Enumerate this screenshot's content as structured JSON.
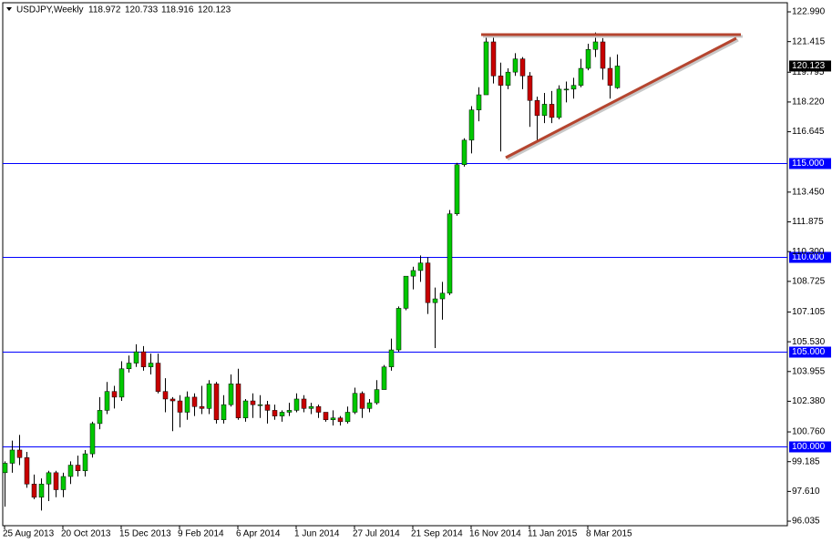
{
  "chart_data": {
    "type": "candlestick",
    "title": "USDJPY,Weekly",
    "categories": [
      "25 Aug 2013",
      null,
      null,
      null,
      null,
      null,
      null,
      null,
      "20 Oct 2013",
      null,
      null,
      null,
      null,
      null,
      null,
      null,
      "15 Dec 2013",
      null,
      null,
      null,
      null,
      null,
      null,
      null,
      "9 Feb 2014",
      null,
      null,
      null,
      null,
      null,
      null,
      null,
      "6 Apr 2014",
      null,
      null,
      null,
      null,
      null,
      null,
      null,
      "1 Jun 2014",
      null,
      null,
      null,
      null,
      null,
      null,
      null,
      "27 Jul 2014",
      null,
      null,
      null,
      null,
      null,
      null,
      null,
      "21 Sep 2014",
      null,
      null,
      null,
      null,
      null,
      null,
      null,
      "16 Nov 2014",
      null,
      null,
      null,
      null,
      null,
      null,
      null,
      "11 Jan 2015",
      null,
      null,
      null,
      null,
      null,
      null,
      null,
      "8 Mar 2015",
      null,
      null,
      null,
      null
    ],
    "open": [
      98.6,
      99.1,
      99.8,
      99.4,
      98.0,
      97.3,
      98.0,
      98.6,
      97.7,
      98.4,
      99.0,
      98.7,
      99.6,
      101.2,
      101.9,
      102.9,
      102.6,
      104.1,
      104.4,
      105.0,
      104.2,
      104.4,
      102.9,
      102.5,
      102.4,
      101.8,
      102.6,
      102.1,
      102.0,
      103.3,
      101.4,
      102.2,
      103.3,
      101.5,
      102.4,
      102.2,
      102.2,
      101.9,
      101.6,
      101.8,
      101.9,
      102.5,
      102.0,
      102.1,
      101.8,
      101.4,
      101.5,
      101.3,
      101.8,
      102.8,
      102.0,
      102.3,
      103.0,
      104.2,
      105.1,
      107.3,
      109.0,
      109.3,
      109.7,
      107.6,
      107.8,
      108.1,
      112.3,
      114.9,
      116.2,
      117.8,
      118.6,
      121.4,
      119.6,
      119.1,
      119.8,
      120.5,
      119.6,
      118.3,
      117.5,
      118.1,
      117.4,
      118.9,
      118.9,
      119.1,
      120.0,
      121.0,
      121.4,
      120.0,
      118.972
    ],
    "high": [
      99.2,
      100.3,
      100.6,
      99.7,
      98.5,
      98.3,
      98.7,
      98.7,
      98.6,
      99.2,
      99.5,
      99.8,
      101.3,
      102.6,
      103.4,
      103.2,
      104.5,
      104.8,
      105.4,
      105.3,
      104.9,
      104.9,
      103.6,
      102.6,
      102.7,
      102.9,
      102.8,
      103.2,
      103.5,
      103.4,
      102.7,
      103.8,
      104.1,
      102.5,
      102.8,
      102.7,
      102.4,
      102.2,
      101.9,
      102.3,
      102.8,
      102.7,
      102.3,
      102.2,
      101.8,
      101.9,
      101.6,
      102.1,
      103.1,
      102.9,
      102.5,
      103.5,
      104.3,
      105.7,
      107.4,
      109.0,
      109.5,
      110.1,
      110.0,
      108.4,
      108.7,
      112.5,
      115.0,
      116.3,
      118.0,
      119.0,
      121.8,
      121.8,
      120.3,
      120.0,
      120.8,
      120.6,
      119.8,
      118.5,
      118.7,
      118.8,
      119.1,
      119.3,
      119.5,
      120.5,
      121.3,
      121.9,
      121.6,
      120.6,
      120.733
    ],
    "low": [
      96.8,
      98.6,
      99.0,
      97.8,
      97.2,
      96.6,
      97.1,
      97.3,
      97.3,
      98.0,
      98.4,
      98.4,
      99.4,
      100.9,
      101.7,
      102.0,
      102.4,
      103.9,
      104.2,
      104.0,
      103.8,
      102.8,
      101.8,
      100.8,
      101.0,
      101.4,
      101.6,
      101.7,
      101.7,
      101.2,
      101.2,
      102.1,
      101.4,
      101.3,
      101.5,
      101.5,
      101.2,
      101.4,
      101.3,
      101.6,
      101.8,
      101.8,
      101.7,
      101.5,
      101.3,
      101.1,
      101.1,
      101.2,
      101.7,
      101.5,
      101.8,
      102.2,
      103.0,
      104.0,
      105.0,
      107.2,
      108.3,
      108.7,
      107.0,
      105.2,
      106.7,
      108.0,
      112.2,
      114.8,
      115.5,
      117.2,
      118.6,
      119.2,
      115.6,
      118.9,
      119.6,
      118.9,
      116.9,
      116.1,
      117.1,
      117.1,
      117.3,
      118.2,
      118.4,
      119.0,
      119.9,
      120.6,
      119.4,
      118.4,
      118.916
    ],
    "close": [
      99.1,
      99.8,
      99.4,
      98.0,
      97.3,
      98.0,
      98.6,
      97.7,
      98.4,
      99.0,
      98.7,
      99.6,
      101.2,
      101.9,
      102.9,
      102.6,
      104.1,
      104.4,
      105.0,
      104.2,
      104.4,
      102.9,
      102.5,
      102.4,
      101.8,
      102.6,
      102.1,
      102.0,
      103.3,
      101.4,
      102.2,
      103.3,
      101.5,
      102.4,
      102.2,
      102.2,
      101.9,
      101.6,
      101.8,
      101.9,
      102.5,
      102.0,
      102.1,
      101.8,
      101.4,
      101.5,
      101.3,
      101.8,
      102.8,
      102.0,
      102.3,
      103.0,
      104.2,
      105.1,
      107.3,
      109.0,
      109.3,
      109.7,
      107.6,
      107.8,
      108.1,
      112.3,
      114.9,
      116.2,
      117.8,
      118.6,
      121.4,
      119.6,
      119.1,
      119.8,
      120.5,
      119.6,
      118.3,
      117.5,
      118.1,
      117.4,
      118.9,
      118.9,
      119.1,
      120.0,
      121.0,
      121.4,
      120.0,
      119.1,
      120.123
    ],
    "up_color": "#00c800",
    "down_color": "#c80000",
    "ylim": [
      95.796,
      123.472
    ],
    "yticks": [
      {
        "value": 122.99,
        "label": "122.990"
      },
      121.415,
      119.795,
      {
        "value": 118.22,
        "label": "118.220"
      },
      116.645,
      {
        "value": 113.45,
        "label": "113.450"
      },
      111.875,
      {
        "value": 110.3,
        "label": "110.300"
      },
      108.725,
      107.105,
      {
        "value": 105.53,
        "label": "105.530"
      },
      103.955,
      {
        "value": 102.38,
        "label": "102.380"
      },
      {
        "value": 100.76,
        "label": "100.760"
      },
      99.185,
      {
        "value": 97.61,
        "label": "97.610"
      },
      96.035
    ],
    "levels": [
      {
        "value": 115,
        "label": "115.000"
      },
      {
        "value": 110,
        "label": "110.000"
      },
      {
        "value": 105,
        "label": "105.000"
      },
      {
        "value": 100,
        "label": "100.000"
      }
    ],
    "level_color": "#0000ff",
    "current_price": {
      "value": 120.123,
      "label": "120.123"
    }
  }
}
